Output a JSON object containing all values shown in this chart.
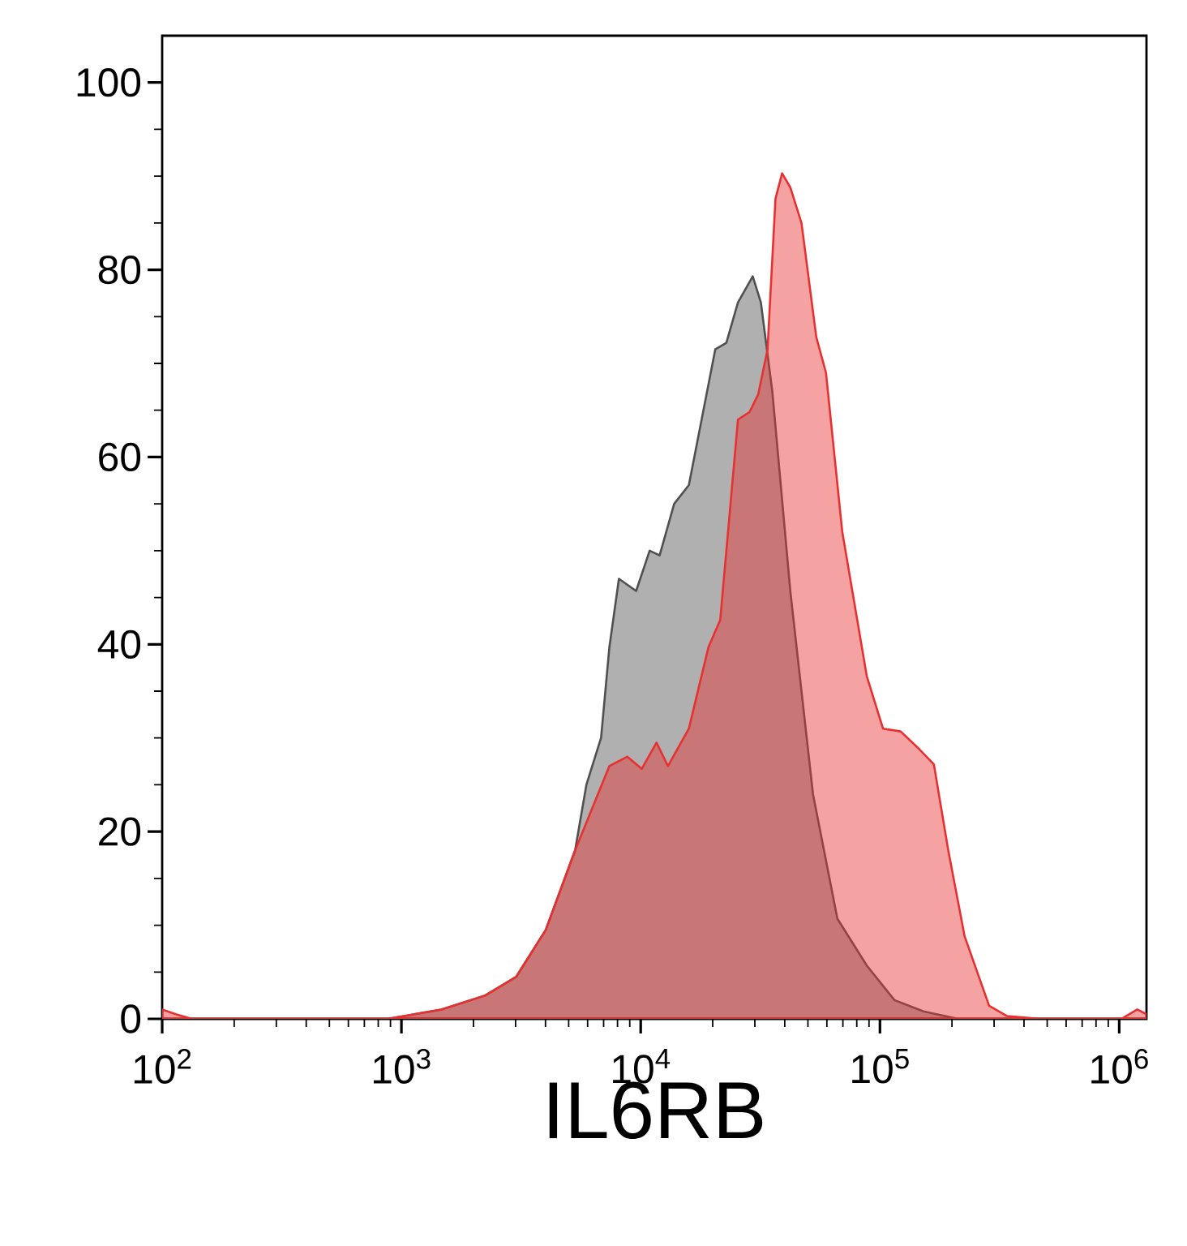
{
  "chart_data": {
    "type": "area",
    "xlabel": "IL6RB",
    "log": "x",
    "xlim": [
      100,
      1300000
    ],
    "ylim": [
      0,
      105
    ],
    "xticks": [
      {
        "value": 100,
        "label": "10$^{2}$"
      },
      {
        "value": 1000,
        "label": "10$^{3}$"
      },
      {
        "value": 10000,
        "label": "10$^{4}$"
      },
      {
        "value": 100000,
        "label": "10$^{5}$"
      },
      {
        "value": 1000000,
        "label": "10$^{6}$"
      }
    ],
    "yticks": [
      0,
      20,
      40,
      60,
      80,
      100
    ],
    "grid": false,
    "series": [
      {
        "color": "#505050",
        "x": [
          133,
          875,
          1470,
          2240,
          3020,
          4010,
          5320,
          5930,
          6830,
          7400,
          8110,
          9570,
          10900,
          12000,
          13800,
          15900,
          20500,
          22800,
          25500,
          29400,
          31800,
          35500,
          42200,
          52500,
          66400,
          88100,
          115000,
          152000,
          212000,
          1300000
        ],
        "values": [
          0,
          0,
          1,
          2.5,
          4.5,
          9.5,
          18,
          25,
          30,
          39.7,
          47,
          45.7,
          50,
          49.5,
          55,
          57,
          71.5,
          72.2,
          76.5,
          79.3,
          76.5,
          67,
          45.7,
          24,
          10.7,
          5.7,
          2,
          0.8,
          0,
          0
        ]
      },
      {
        "color": "#e83030",
        "x": [
          100,
          114,
          133,
          875,
          1470,
          2240,
          3020,
          4010,
          5320,
          7400,
          8780,
          10100,
          11650,
          13000,
          15900,
          19200,
          21500,
          25500,
          28500,
          31000,
          33900,
          36600,
          39000,
          42200,
          47000,
          54200,
          59500,
          69600,
          88100,
          103000,
          122000,
          146000,
          168000,
          193000,
          226000,
          286000,
          340000,
          465000,
          1020000,
          1190000,
          1300000
        ],
        "values": [
          1,
          0.5,
          0,
          0,
          1,
          2.5,
          4.5,
          9.5,
          18,
          27,
          28,
          26.7,
          29.5,
          27,
          31,
          39.7,
          42.6,
          64,
          64.8,
          66.7,
          71.5,
          87.6,
          90.3,
          88.8,
          85,
          72.8,
          69,
          52,
          36.6,
          31,
          30.7,
          28.8,
          27.2,
          18,
          8.8,
          1.4,
          0.3,
          0,
          0,
          1,
          0.5
        ]
      }
    ]
  }
}
